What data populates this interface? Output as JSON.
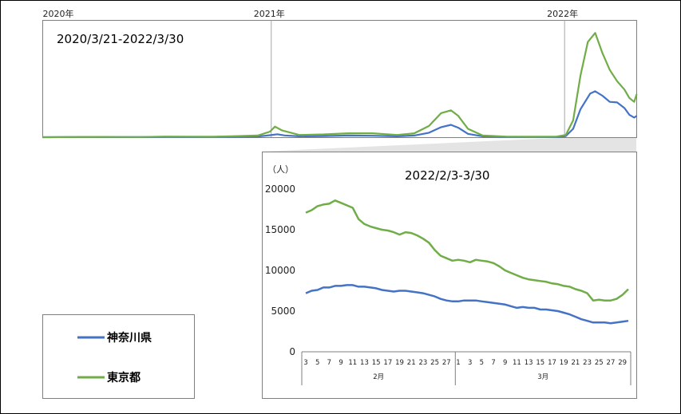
{
  "colors": {
    "kanagawa": "#4472c4",
    "tokyo": "#70ad47"
  },
  "legend": [
    {
      "name": "神奈川県",
      "color": "#4472c4"
    },
    {
      "name": "東京都",
      "color": "#70ad47"
    }
  ],
  "chart_data": [
    {
      "type": "line",
      "title": "2020/3/21-2022/3/30",
      "year_labels": [
        "2020年",
        "2021年",
        "2022年"
      ],
      "x_range_months": [
        0,
        24.3
      ],
      "year_marks_months": [
        0,
        9.35,
        21.35
      ],
      "ylim": [
        0,
        20000
      ],
      "series": [
        {
          "name": "神奈川県",
          "color": "#4472c4",
          "points": [
            [
              0,
              0
            ],
            [
              2,
              40
            ],
            [
              3,
              30
            ],
            [
              4,
              20
            ],
            [
              5,
              40
            ],
            [
              6,
              60
            ],
            [
              7,
              50
            ],
            [
              8,
              80
            ],
            [
              8.8,
              110
            ],
            [
              9.3,
              350
            ],
            [
              9.6,
              520
            ],
            [
              9.9,
              320
            ],
            [
              10.5,
              150
            ],
            [
              11.5,
              200
            ],
            [
              12.5,
              300
            ],
            [
              13.5,
              250
            ],
            [
              14.5,
              150
            ],
            [
              15.2,
              300
            ],
            [
              15.8,
              800
            ],
            [
              16.3,
              1800
            ],
            [
              16.7,
              2200
            ],
            [
              17.0,
              1700
            ],
            [
              17.4,
              600
            ],
            [
              18,
              150
            ],
            [
              19,
              50
            ],
            [
              20,
              40
            ],
            [
              21,
              60
            ],
            [
              21.4,
              200
            ],
            [
              21.7,
              1500
            ],
            [
              22.0,
              5000
            ],
            [
              22.4,
              7800
            ],
            [
              22.6,
              8200
            ],
            [
              22.9,
              7400
            ],
            [
              23.2,
              6300
            ],
            [
              23.5,
              6200
            ],
            [
              23.8,
              5200
            ],
            [
              24.0,
              4000
            ],
            [
              24.2,
              3500
            ],
            [
              24.3,
              3800
            ]
          ]
        },
        {
          "name": "東京都",
          "color": "#70ad47",
          "points": [
            [
              0,
              0
            ],
            [
              2,
              60
            ],
            [
              3,
              40
            ],
            [
              4,
              30
            ],
            [
              5,
              120
            ],
            [
              6,
              100
            ],
            [
              7,
              80
            ],
            [
              8,
              200
            ],
            [
              8.8,
              300
            ],
            [
              9.3,
              1000
            ],
            [
              9.5,
              1900
            ],
            [
              9.8,
              1200
            ],
            [
              10.5,
              400
            ],
            [
              11.5,
              500
            ],
            [
              12.5,
              700
            ],
            [
              13.5,
              700
            ],
            [
              14.5,
              400
            ],
            [
              15.2,
              700
            ],
            [
              15.8,
              2000
            ],
            [
              16.3,
              4300
            ],
            [
              16.7,
              4800
            ],
            [
              17.0,
              3800
            ],
            [
              17.4,
              1500
            ],
            [
              18,
              300
            ],
            [
              19,
              100
            ],
            [
              20,
              80
            ],
            [
              21,
              100
            ],
            [
              21.4,
              400
            ],
            [
              21.7,
              3000
            ],
            [
              22.0,
              11000
            ],
            [
              22.3,
              17000
            ],
            [
              22.6,
              18600
            ],
            [
              22.9,
              15000
            ],
            [
              23.2,
              12000
            ],
            [
              23.5,
              10000
            ],
            [
              23.8,
              8500
            ],
            [
              24.0,
              7000
            ],
            [
              24.2,
              6300
            ],
            [
              24.3,
              7700
            ]
          ]
        }
      ]
    },
    {
      "type": "line",
      "title": "2022/2/3-3/30",
      "unit": "（人）",
      "ylim": [
        0,
        20000
      ],
      "y_ticks": [
        0,
        5000,
        10000,
        15000,
        20000
      ],
      "months": [
        "2月",
        "3月"
      ],
      "x_labels": [
        "3",
        "5",
        "7",
        "9",
        "11",
        "13",
        "15",
        "17",
        "19",
        "21",
        "23",
        "25",
        "27",
        "1",
        "3",
        "5",
        "7",
        "9",
        "11",
        "13",
        "15",
        "17",
        "19",
        "21",
        "23",
        "25",
        "27",
        "29"
      ],
      "categories": [
        "2/3",
        "2/4",
        "2/5",
        "2/6",
        "2/7",
        "2/8",
        "2/9",
        "2/10",
        "2/11",
        "2/12",
        "2/13",
        "2/14",
        "2/15",
        "2/16",
        "2/17",
        "2/18",
        "2/19",
        "2/20",
        "2/21",
        "2/22",
        "2/23",
        "2/24",
        "2/25",
        "2/26",
        "2/27",
        "2/28",
        "3/1",
        "3/2",
        "3/3",
        "3/4",
        "3/5",
        "3/6",
        "3/7",
        "3/8",
        "3/9",
        "3/10",
        "3/11",
        "3/12",
        "3/13",
        "3/14",
        "3/15",
        "3/16",
        "3/17",
        "3/18",
        "3/19",
        "3/20",
        "3/21",
        "3/22",
        "3/23",
        "3/24",
        "3/25",
        "3/26",
        "3/27",
        "3/28",
        "3/29",
        "3/30"
      ],
      "series": [
        {
          "name": "神奈川県",
          "color": "#4472c4",
          "values": [
            7200,
            7500,
            7600,
            7900,
            7900,
            8100,
            8100,
            8200,
            8200,
            8000,
            8000,
            7900,
            7800,
            7600,
            7500,
            7400,
            7500,
            7500,
            7400,
            7300,
            7200,
            7000,
            6800,
            6500,
            6300,
            6200,
            6200,
            6300,
            6300,
            6300,
            6200,
            6100,
            6000,
            5900,
            5800,
            5600,
            5400,
            5500,
            5400,
            5400,
            5200,
            5200,
            5100,
            5000,
            4800,
            4600,
            4300,
            4000,
            3800,
            3600,
            3600,
            3600,
            3500,
            3600,
            3700,
            3800
          ]
        },
        {
          "name": "東京都",
          "color": "#70ad47",
          "values": [
            17100,
            17400,
            17900,
            18100,
            18200,
            18600,
            18300,
            18000,
            17700,
            16300,
            15700,
            15400,
            15200,
            15000,
            14900,
            14700,
            14400,
            14700,
            14600,
            14300,
            13900,
            13400,
            12500,
            11800,
            11500,
            11200,
            11300,
            11200,
            11000,
            11300,
            11200,
            11100,
            10900,
            10500,
            10000,
            9700,
            9400,
            9100,
            8900,
            8800,
            8700,
            8600,
            8400,
            8300,
            8100,
            8000,
            7700,
            7500,
            7200,
            6300,
            6400,
            6300,
            6300,
            6500,
            7000,
            7700
          ]
        }
      ]
    }
  ]
}
